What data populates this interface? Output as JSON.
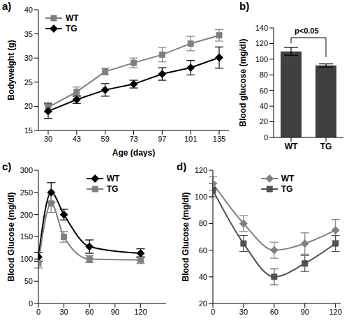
{
  "chart_data": [
    {
      "type": "line",
      "title": "a)",
      "x_label": "Age (days)",
      "y_label": "Bodyweight (g)",
      "categories": [
        30,
        43,
        59,
        73,
        97,
        101,
        135
      ],
      "ylim": [
        15,
        40
      ],
      "yticks": [
        15,
        20,
        25,
        30,
        35,
        40
      ],
      "legend": "upper left",
      "series": [
        {
          "name": "WT",
          "color": "#808080",
          "marker": "square",
          "values": [
            19.8,
            23,
            27.2,
            29,
            30.7,
            33,
            34.7
          ],
          "errors": [
            1,
            1,
            0.7,
            1,
            1.5,
            1.5,
            1.2
          ]
        },
        {
          "name": "TG",
          "color": "#000000",
          "marker": "diamond",
          "values": [
            19,
            21.4,
            23.4,
            24.6,
            26.7,
            28,
            30.1
          ],
          "errors": [
            1.5,
            0.8,
            1.3,
            0.8,
            1.3,
            1.5,
            2.2
          ]
        }
      ]
    },
    {
      "type": "bar",
      "title": "b)",
      "y_label": "Blood glucose (mg/dl)",
      "categories": [
        "WT",
        "TG"
      ],
      "values": [
        110,
        92
      ],
      "errors": [
        5,
        2
      ],
      "color": "#404040",
      "ylim": [
        0,
        140
      ],
      "yticks": [
        0,
        20,
        40,
        60,
        80,
        100,
        120,
        140
      ],
      "annotation": "p<0.05"
    },
    {
      "type": "line",
      "title": "c)",
      "y_label": "Blood Glucose (mg/dl)",
      "x": [
        0,
        15,
        30,
        60,
        120
      ],
      "xlim": [
        0,
        150
      ],
      "xticks": [
        0,
        30,
        60,
        90,
        120
      ],
      "ylim": [
        0,
        300
      ],
      "yticks": [
        0,
        50,
        100,
        150,
        200,
        250,
        300
      ],
      "legend": "upper center",
      "series": [
        {
          "name": "WT",
          "color": "#000000",
          "marker": "diamond",
          "values": [
            105,
            250,
            200,
            128,
            113
          ],
          "errors": [
            10,
            22,
            12,
            15,
            10
          ]
        },
        {
          "name": "TG",
          "color": "#808080",
          "marker": "square",
          "values": [
            90,
            225,
            150,
            100,
            98
          ],
          "errors": [
            10,
            20,
            12,
            8,
            8
          ]
        }
      ]
    },
    {
      "type": "line",
      "title": "d)",
      "y_label": "Blood Glucose (mg/dl)",
      "x": [
        0,
        30,
        60,
        90,
        120
      ],
      "xlim": [
        0,
        125
      ],
      "xticks": [
        0,
        30,
        60,
        90,
        120
      ],
      "ylim": [
        20,
        120
      ],
      "yticks": [
        20,
        40,
        60,
        80,
        100,
        120
      ],
      "legend": "upper center",
      "series": [
        {
          "name": "WT",
          "color": "#808080",
          "marker": "diamond",
          "values": [
            110,
            80,
            60,
            65,
            75
          ],
          "errors": [
            5,
            6,
            6,
            8,
            8
          ]
        },
        {
          "name": "TG",
          "color": "#505050",
          "marker": "square",
          "values": [
            105,
            65,
            40,
            50,
            65
          ],
          "errors": [
            5,
            6,
            6,
            6,
            6
          ]
        }
      ]
    }
  ]
}
